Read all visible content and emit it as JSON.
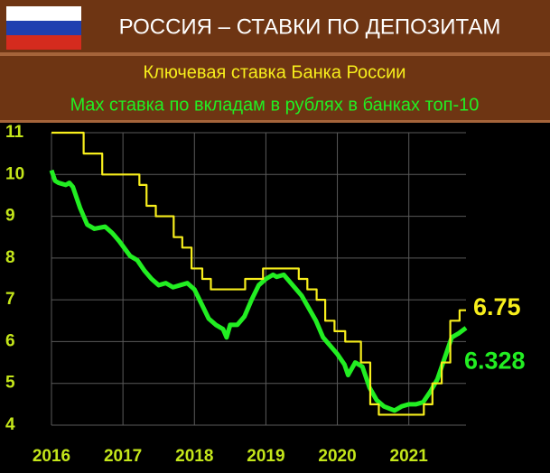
{
  "chart_data": {
    "type": "line",
    "title": "РОССИЯ – СТАВКИ ПО ДЕПОЗИТАМ",
    "xlim": [
      2016,
      2021.8
    ],
    "xticks": [
      2016,
      2017,
      2018,
      2019,
      2020,
      2021
    ],
    "ylim": [
      4,
      11
    ],
    "yticks": [
      4,
      5,
      6,
      7,
      8,
      9,
      10,
      11
    ],
    "grid": true,
    "series": [
      {
        "name": "Ключевая ставка Банка России",
        "color": "#f7ee1c",
        "x": [
          2016.0,
          2016.45,
          2016.45,
          2016.71,
          2016.71,
          2017.23,
          2017.23,
          2017.33,
          2017.33,
          2017.46,
          2017.46,
          2017.71,
          2017.71,
          2017.83,
          2017.83,
          2017.96,
          2017.96,
          2018.11,
          2018.11,
          2018.23,
          2018.23,
          2018.71,
          2018.71,
          2018.96,
          2018.96,
          2019.46,
          2019.46,
          2019.58,
          2019.58,
          2019.71,
          2019.71,
          2019.83,
          2019.83,
          2019.96,
          2019.96,
          2020.11,
          2020.11,
          2020.33,
          2020.33,
          2020.46,
          2020.46,
          2020.58,
          2020.58,
          2021.21,
          2021.21,
          2021.33,
          2021.33,
          2021.46,
          2021.46,
          2021.58,
          2021.58,
          2021.71,
          2021.71,
          2021.8
        ],
        "values": [
          11,
          11,
          10.5,
          10.5,
          10,
          10,
          9.75,
          9.75,
          9.25,
          9.25,
          9,
          9,
          8.5,
          8.5,
          8.25,
          8.25,
          7.75,
          7.75,
          7.5,
          7.5,
          7.25,
          7.25,
          7.5,
          7.5,
          7.75,
          7.75,
          7.5,
          7.5,
          7.25,
          7.25,
          7,
          7,
          6.5,
          6.5,
          6.25,
          6.25,
          6,
          6,
          5.5,
          5.5,
          4.5,
          4.5,
          4.25,
          4.25,
          4.5,
          4.5,
          5,
          5,
          5.5,
          5.5,
          6.5,
          6.5,
          6.75,
          6.75
        ]
      },
      {
        "name": "Max ставка по вкладам в рублях в банках топ-10",
        "color": "#22ee22",
        "x": [
          2016.0,
          2016.05,
          2016.1,
          2016.2,
          2016.25,
          2016.3,
          2016.4,
          2016.5,
          2016.6,
          2016.75,
          2016.85,
          2016.95,
          2017.1,
          2017.2,
          2017.3,
          2017.4,
          2017.5,
          2017.6,
          2017.7,
          2017.8,
          2017.9,
          2018.0,
          2018.1,
          2018.2,
          2018.3,
          2018.4,
          2018.45,
          2018.5,
          2018.6,
          2018.7,
          2018.8,
          2018.9,
          2019.0,
          2019.1,
          2019.15,
          2019.25,
          2019.35,
          2019.5,
          2019.6,
          2019.7,
          2019.8,
          2019.9,
          2020.0,
          2020.1,
          2020.15,
          2020.25,
          2020.35,
          2020.45,
          2020.55,
          2020.65,
          2020.8,
          2020.9,
          2021.0,
          2021.1,
          2021.2,
          2021.3,
          2021.4,
          2021.5,
          2021.6,
          2021.7,
          2021.8
        ],
        "values": [
          10.1,
          9.85,
          9.8,
          9.75,
          9.8,
          9.7,
          9.2,
          8.8,
          8.7,
          8.75,
          8.6,
          8.4,
          8.05,
          7.95,
          7.7,
          7.5,
          7.35,
          7.4,
          7.3,
          7.35,
          7.4,
          7.25,
          6.9,
          6.55,
          6.4,
          6.3,
          6.1,
          6.4,
          6.4,
          6.6,
          7.0,
          7.35,
          7.5,
          7.6,
          7.55,
          7.6,
          7.4,
          7.1,
          6.8,
          6.5,
          6.1,
          5.9,
          5.7,
          5.45,
          5.2,
          5.5,
          5.4,
          4.9,
          4.6,
          4.45,
          4.35,
          4.45,
          4.5,
          4.5,
          4.55,
          4.8,
          5.1,
          5.6,
          6.1,
          6.2,
          6.328
        ]
      }
    ]
  }
}
